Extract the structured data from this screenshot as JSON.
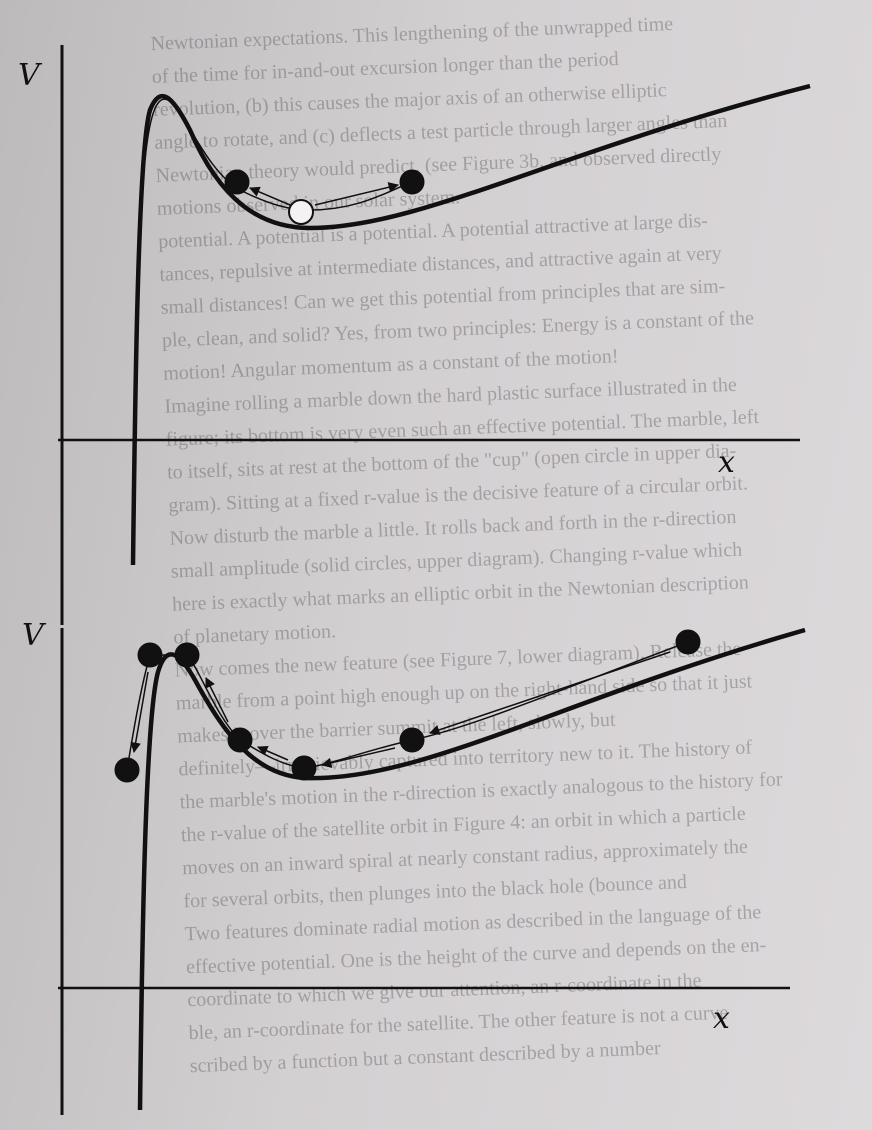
{
  "show_through": [
    "Newtonian expectations. This lengthening of the unwrapped time",
    "of the time for in-and-out excursion longer than the period",
    "revolution, (b) this causes the major axis of an otherwise elliptic",
    "angle to rotate, and (c) deflects a test particle through larger angles than",
    "Newtonian theory would predict. (see Figure 3b, and observed directly",
    "motions observed in our solar system.",
    "potential. A potential is a potential. A potential attractive at large dis-",
    "tances, repulsive at intermediate distances, and attractive again at very",
    "small distances! Can we get this potential from principles that are sim-",
    "ple, clean, and solid? Yes, from two principles: Energy is a constant of the",
    "motion! Angular momentum as a constant of the motion!",
    "Imagine rolling a marble down the hard plastic surface illustrated in the",
    "figure; its bottom is very even such an effective potential. The marble, left",
    "to itself, sits at rest at the bottom of the \"cup\" (open circle in upper dia-",
    "gram). Sitting at a fixed r-value is the decisive feature of a circular orbit.",
    "Now disturb the marble a little. It rolls back and forth in the r-direction",
    "small amplitude (solid circles, upper diagram). Changing r-value which",
    "here is exactly what marks an elliptic orbit in the Newtonian description",
    "of planetary motion.",
    "Now comes the new feature (see Figure 7, lower diagram). Release the",
    "marble from a point high enough up on the right-hand side so that it just",
    "makes it over the barrier summit at the left, slowly, but",
    "definitely—irretrievably captured into territory new to it. The history of",
    "the marble's motion in the r-direction is exactly analogous to the history for",
    "the r-value of the satellite orbit in Figure 4: an orbit in which a particle",
    "moves on an inward spiral at nearly constant radius, approximately the",
    "for several orbits, then plunges into the black hole (bounce and",
    "Two features dominate radial motion as described in the language of the",
    "effective potential. One is the height of the curve and depends on the en-",
    "coordinate to which we give our attention, an r-coordinate in the",
    "ble, an r-coordinate for the satellite. The other feature is not a curve",
    "scribed by a function but a constant described by a number"
  ],
  "diagrams": [
    {
      "y_label": "V",
      "x_label": "x"
    },
    {
      "y_label": "V",
      "x_label": "x"
    }
  ]
}
